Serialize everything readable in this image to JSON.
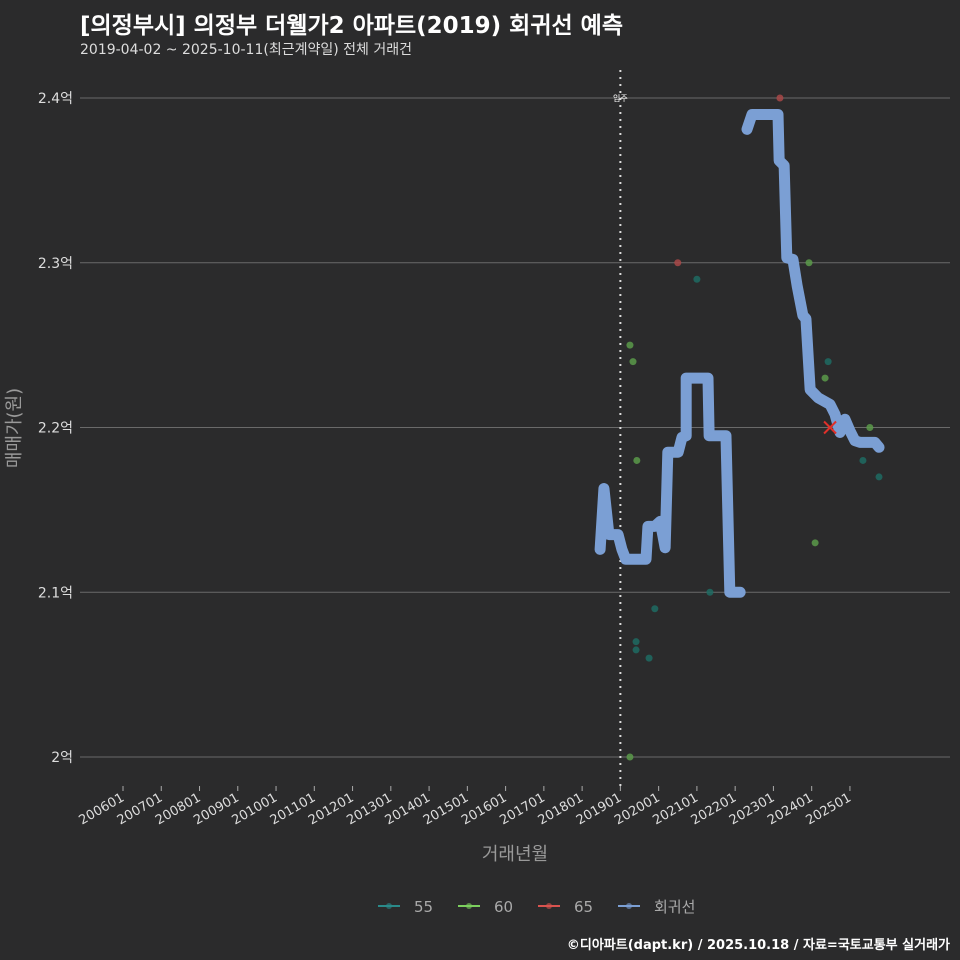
{
  "title": "[의정부시] 의정부 더웰가2 아파트(2019) 회귀선 예측",
  "subtitle": "2019-04-02 ~ 2025-10-11(최근계약일) 전체 거래건",
  "credit": "©디아파트(dapt.kr) / 2025.10.18 / 자료=국토교통부 실거래가",
  "chart_data": {
    "type": "scatter",
    "xlabel": "거래년월",
    "ylabel": "매매가(원)",
    "ylim": [
      1.985,
      2.42
    ],
    "xlim": [
      2004.9,
      2027.7
    ],
    "yticks": [
      {
        "v": 2.0,
        "label": "2억"
      },
      {
        "v": 2.1,
        "label": "2.1억"
      },
      {
        "v": 2.2,
        "label": "2.2억"
      },
      {
        "v": 2.3,
        "label": "2.3억"
      },
      {
        "v": 2.4,
        "label": "2.4억"
      }
    ],
    "xticks": [
      "200601",
      "200701",
      "200801",
      "200901",
      "201001",
      "201101",
      "201201",
      "201301",
      "201401",
      "201501",
      "201601",
      "201701",
      "201801",
      "201901",
      "202001",
      "202101",
      "202201",
      "202301",
      "202401",
      "202501"
    ],
    "annotation": {
      "x": 2019.0,
      "label": "입주"
    },
    "legend": {
      "position": "bottom",
      "items": [
        {
          "name": "55",
          "color": "#2a8a8a"
        },
        {
          "name": "60",
          "color": "#7ccf5e"
        },
        {
          "name": "65",
          "color": "#d9534f"
        },
        {
          "name": "회귀선",
          "color": "#7b9fd4"
        }
      ]
    },
    "series": [
      {
        "name": "55",
        "color": "#1f6b63",
        "points": [
          [
            2021.0,
            2.29
          ],
          [
            2024.43,
            2.24
          ],
          [
            2025.34,
            2.18
          ],
          [
            2025.76,
            2.17
          ],
          [
            2021.34,
            2.1
          ],
          [
            2019.9,
            2.09
          ],
          [
            2019.41,
            2.07
          ],
          [
            2019.41,
            2.065
          ],
          [
            2019.75,
            2.06
          ]
        ]
      },
      {
        "name": "60",
        "color": "#5a9a4a",
        "points": [
          [
            2019.25,
            2.25
          ],
          [
            2019.33,
            2.24
          ],
          [
            2019.43,
            2.18
          ],
          [
            2023.93,
            2.3
          ],
          [
            2024.35,
            2.23
          ],
          [
            2025.52,
            2.2
          ],
          [
            2024.09,
            2.13
          ],
          [
            2019.25,
            2.0
          ]
        ]
      },
      {
        "name": "65",
        "color": "#a84848",
        "points": [
          [
            2023.17,
            2.4
          ],
          [
            2020.5,
            2.3
          ]
        ]
      }
    ],
    "latest": {
      "x": 2024.48,
      "y": 2.2,
      "color": "#e0302a"
    },
    "regression": [
      [
        [
          2018.47,
          2.126
        ],
        [
          2018.57,
          2.163
        ],
        [
          2018.7,
          2.135
        ],
        [
          2018.94,
          2.135
        ],
        [
          2019.04,
          2.126
        ],
        [
          2019.14,
          2.12
        ],
        [
          2019.67,
          2.12
        ],
        [
          2019.72,
          2.14
        ],
        [
          2019.9,
          2.14
        ],
        [
          2020.04,
          2.143
        ],
        [
          2020.17,
          2.127
        ],
        [
          2020.24,
          2.185
        ],
        [
          2020.51,
          2.185
        ],
        [
          2020.61,
          2.194
        ],
        [
          2020.72,
          2.195
        ],
        [
          2020.72,
          2.23
        ],
        [
          2021.29,
          2.23
        ],
        [
          2021.32,
          2.195
        ],
        [
          2021.76,
          2.195
        ],
        [
          2021.86,
          2.1
        ],
        [
          2022.13,
          2.1
        ]
      ],
      [
        [
          2022.31,
          2.381
        ],
        [
          2022.44,
          2.39
        ],
        [
          2023.12,
          2.39
        ],
        [
          2023.15,
          2.362
        ],
        [
          2023.28,
          2.359
        ],
        [
          2023.35,
          2.303
        ],
        [
          2023.51,
          2.302
        ],
        [
          2023.62,
          2.286
        ],
        [
          2023.77,
          2.268
        ],
        [
          2023.85,
          2.266
        ],
        [
          2023.96,
          2.223
        ],
        [
          2024.17,
          2.218
        ],
        [
          2024.48,
          2.214
        ],
        [
          2024.61,
          2.208
        ],
        [
          2024.74,
          2.197
        ],
        [
          2024.87,
          2.205
        ],
        [
          2025.0,
          2.198
        ],
        [
          2025.13,
          2.192
        ],
        [
          2025.26,
          2.191
        ],
        [
          2025.65,
          2.191
        ],
        [
          2025.76,
          2.188
        ]
      ]
    ]
  }
}
